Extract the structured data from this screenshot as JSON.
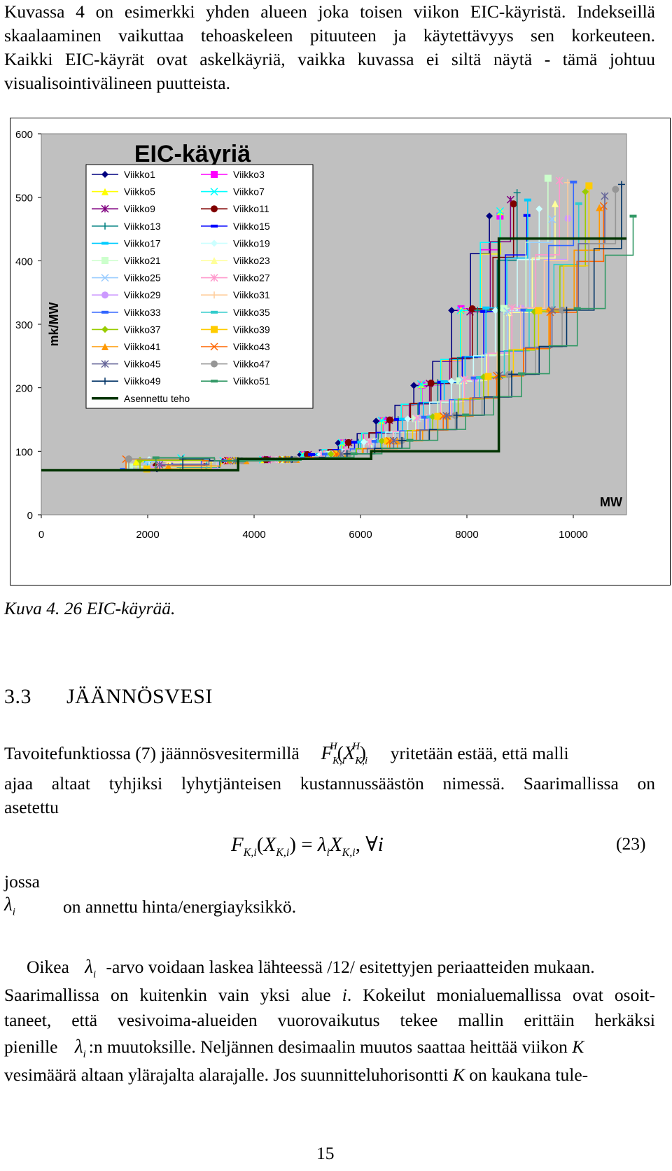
{
  "intro": {
    "lines": [
      "Kuvassa 4 on esimerkki yhden alueen joka toisen viikon EIC-käyristä. Indekseillä",
      "skaalaaminen vaikuttaa tehoaskeleen pituuteen ja käytettävyys sen korkeuteen.",
      "Kaikki EIC-käyrät ovat askelkäyriä, vaikka kuvassa ei siltä näytä - tämä johtuu",
      "visualisointivälineen puutteista."
    ]
  },
  "chart_data": {
    "type": "line",
    "title": "EIC-käyriä",
    "ylabel": "mk/MW",
    "xlabel": "MW",
    "xlim": [
      0,
      11000
    ],
    "ylim": [
      0,
      600
    ],
    "x_ticks": [
      "0",
      "2000",
      "4000",
      "6000",
      "8000",
      "10000"
    ],
    "y_ticks": [
      "600",
      "500",
      "400",
      "300",
      "200",
      "100",
      "0"
    ],
    "grid": false,
    "plot_background": "#c0c0c0",
    "legend_position": "upper-left",
    "legend": [
      "Viikko1",
      "Viikko3",
      "Viikko5",
      "Viikko7",
      "Viikko9",
      "Viikko11",
      "Viikko13",
      "Viikko15",
      "Viikko17",
      "Viikko19",
      "Viikko21",
      "Viikko23",
      "Viikko25",
      "Viikko27",
      "Viikko29",
      "Viikko31",
      "Viikko33",
      "Viikko35",
      "Viikko37",
      "Viikko39",
      "Viikko41",
      "Viikko43",
      "Viikko45",
      "Viikko47",
      "Viikko49",
      "Viikko51",
      "Asennettu teho"
    ],
    "series": [
      {
        "name": "Viikko1",
        "color": "#000080",
        "marker": "diamond"
      },
      {
        "name": "Viikko3",
        "color": "#ff00ff",
        "marker": "square"
      },
      {
        "name": "Viikko5",
        "color": "#ffff00",
        "marker": "triangle"
      },
      {
        "name": "Viikko7",
        "color": "#00ffff",
        "marker": "x"
      },
      {
        "name": "Viikko9",
        "color": "#800080",
        "marker": "star"
      },
      {
        "name": "Viikko11",
        "color": "#800000",
        "marker": "circle"
      },
      {
        "name": "Viikko13",
        "color": "#008080",
        "marker": "plus"
      },
      {
        "name": "Viikko15",
        "color": "#0000ff",
        "marker": "dash"
      },
      {
        "name": "Viikko17",
        "color": "#00ccff",
        "marker": "dash"
      },
      {
        "name": "Viikko19",
        "color": "#ccffff",
        "marker": "diamond"
      },
      {
        "name": "Viikko21",
        "color": "#ccffcc",
        "marker": "square"
      },
      {
        "name": "Viikko23",
        "color": "#ffff99",
        "marker": "triangle"
      },
      {
        "name": "Viikko25",
        "color": "#99ccff",
        "marker": "x"
      },
      {
        "name": "Viikko27",
        "color": "#ff99cc",
        "marker": "star"
      },
      {
        "name": "Viikko29",
        "color": "#cc99ff",
        "marker": "circle"
      },
      {
        "name": "Viikko31",
        "color": "#ffcc99",
        "marker": "plus"
      },
      {
        "name": "Viikko33",
        "color": "#3366ff",
        "marker": "dash"
      },
      {
        "name": "Viikko35",
        "color": "#33cccc",
        "marker": "dash"
      },
      {
        "name": "Viikko37",
        "color": "#99cc00",
        "marker": "diamond"
      },
      {
        "name": "Viikko39",
        "color": "#ffcc00",
        "marker": "square"
      },
      {
        "name": "Viikko41",
        "color": "#ff9900",
        "marker": "triangle"
      },
      {
        "name": "Viikko43",
        "color": "#ff6600",
        "marker": "x"
      },
      {
        "name": "Viikko45",
        "color": "#666699",
        "marker": "star"
      },
      {
        "name": "Viikko47",
        "color": "#969696",
        "marker": "circle"
      },
      {
        "name": "Viikko49",
        "color": "#003366",
        "marker": "plus"
      },
      {
        "name": "Viikko51",
        "color": "#339966",
        "marker": "dash"
      },
      {
        "name": "Asennettu teho",
        "color": "#003300",
        "marker": "none",
        "x": [
          0,
          3700,
          3700,
          6200,
          6200,
          8600,
          8600,
          8700,
          8700,
          11000
        ],
        "y": [
          70,
          70,
          88,
          88,
          100,
          100,
          435,
          435,
          435,
          435
        ]
      }
    ]
  },
  "figure": {
    "caption": "Kuva 4. 26 EIC-käyrää."
  },
  "section": {
    "number": "3.3",
    "title": "JÄÄNNÖSVESI"
  },
  "body": {
    "p1_before": "Tavoitefunktiossa (7) jäännösvesitermillä",
    "p1_after": "yritetään estää, että malli",
    "p1_line2": "ajaa altaat tyhjiksi lyhytjänteisen kustannussäästön nimessä. Saarimallissa on",
    "p1_line3": "asetettu",
    "eq_number": "(23)",
    "jossa": "jossa",
    "lambda_def": "on annettu hinta/energiayksikkö.",
    "p2_line1_a": "Oikea",
    "p2_line1_b": "-arvo voidaan laskea lähteessä /12/ esitettyjen periaatteiden mukaan.",
    "p2_line2": "Saarimallissa on kuitenkin vain yksi alue",
    "p2_line2_i": "i",
    "p2_line2_b": ". Kokeilut monialuemallissa ovat osoit-",
    "p2_line3": "taneet, että vesivoima-alueiden vuorovaikutus tekee mallin erittäin herkäksi",
    "p2_line4_a": "pienille",
    "p2_line4_b": ":n muutoksille. Neljännen desimaalin muutos saattaa heittää viikon",
    "p2_line4_K": "K",
    "p2_line5_a": "vesimäärä altaan ylärajalta alarajalle. Jos suunnitteluhorisontti",
    "p2_line5_K": "K",
    "p2_line5_b": "on kaukana tule-"
  },
  "page_number": "15"
}
